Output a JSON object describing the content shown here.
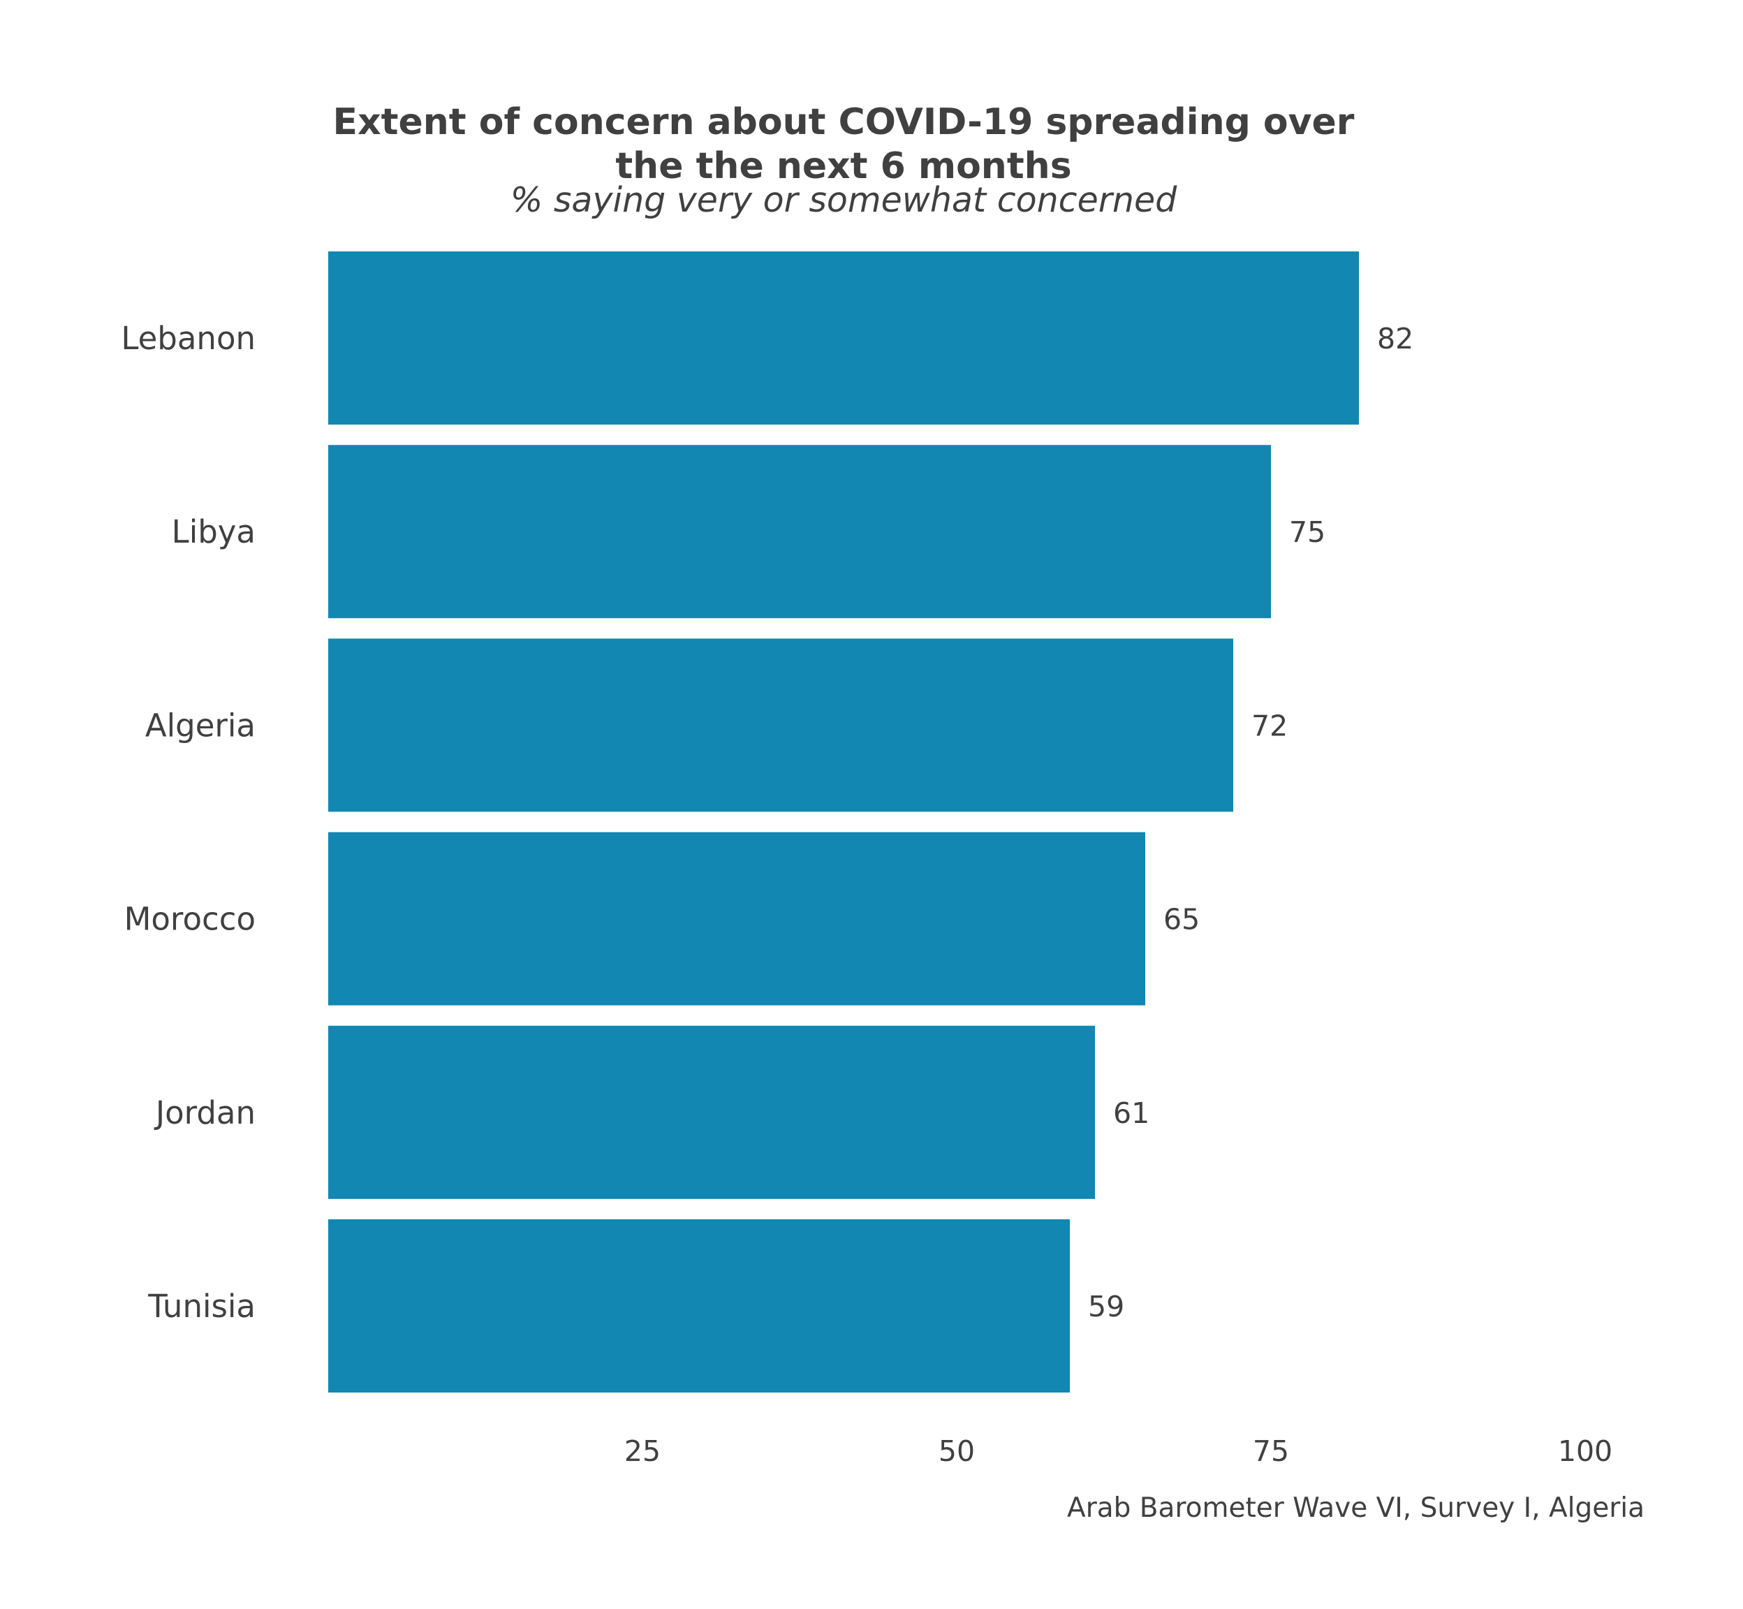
{
  "chart_data": {
    "type": "bar",
    "orientation": "horizontal",
    "title_lines": [
      "Extent of concern about COVID-19 spreading over",
      "the the next 6 months"
    ],
    "subtitle": "% saying very or somewhat concerned",
    "caption": "Arab Barometer Wave VI, Survey I, Algeria",
    "categories": [
      "Lebanon",
      "Libya",
      "Algeria",
      "Morocco",
      "Jordan",
      "Tunisia"
    ],
    "values": [
      82,
      75,
      72,
      65,
      61,
      59
    ],
    "value_labels": [
      "82",
      "75",
      "72",
      "65",
      "61",
      "59"
    ],
    "x_ticks": [
      25,
      50,
      75,
      100
    ],
    "x_tick_labels": [
      "25",
      "50",
      "75",
      "100"
    ],
    "xlim": [
      0,
      100
    ],
    "xlabel": "",
    "ylabel": "",
    "grid": false,
    "legend": false,
    "bar_color": "#1287b1",
    "text_color": "#404040"
  }
}
